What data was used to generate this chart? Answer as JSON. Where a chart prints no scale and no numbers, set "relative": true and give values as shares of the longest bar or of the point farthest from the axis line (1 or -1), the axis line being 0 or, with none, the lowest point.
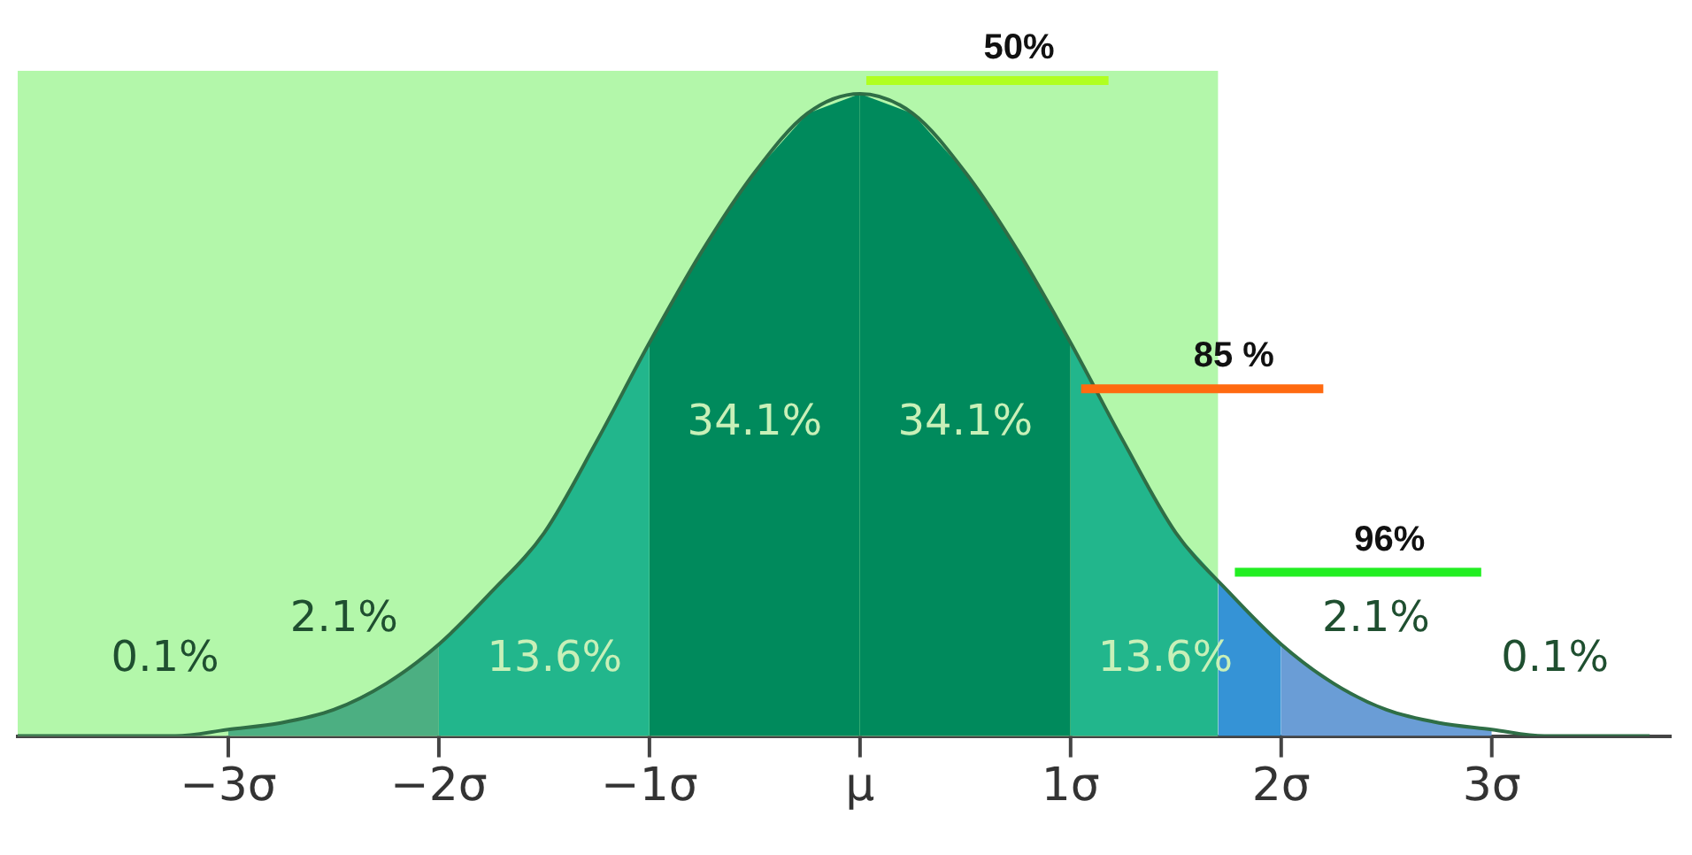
{
  "chart_data": {
    "type": "area",
    "relative": true,
    "grid": false,
    "legend": false,
    "tick_labels": "x",
    "xlim": [
      -4,
      3.85
    ],
    "xticks": [
      {
        "value": -3,
        "label": "−3σ"
      },
      {
        "value": -2,
        "label": "−2σ"
      },
      {
        "value": -1,
        "label": "−1σ"
      },
      {
        "value": 0,
        "label": "μ"
      },
      {
        "value": 1,
        "label": "1σ"
      },
      {
        "value": 2,
        "label": "2σ"
      },
      {
        "value": 3,
        "label": "3σ"
      }
    ],
    "bands": [
      {
        "axis": "x",
        "from": -4,
        "to": 1.7,
        "color": "#b3f7aa"
      }
    ],
    "series": [
      {
        "color": "#4caf82",
        "x": [
          -3,
          -2.75,
          -2.5,
          -2.25,
          -2
        ],
        "values": [
          0.01,
          0.02,
          0.04,
          0.08,
          0.14
        ]
      },
      {
        "color": "#22b68c",
        "x": [
          -2,
          -1.75,
          -1.5,
          -1.25,
          -1
        ],
        "values": [
          0.14,
          0.22,
          0.31,
          0.45,
          0.6
        ]
      },
      {
        "color": "#008a5c",
        "x": [
          -1,
          -0.75,
          -0.5,
          -0.25,
          0
        ],
        "values": [
          0.6,
          0.74,
          0.86,
          0.95,
          0.98
        ]
      },
      {
        "color": "#008a5c",
        "x": [
          0,
          0.25,
          0.5,
          0.75,
          1
        ],
        "values": [
          0.98,
          0.95,
          0.86,
          0.74,
          0.6
        ]
      },
      {
        "color": "#22b68c",
        "x": [
          1,
          1.25,
          1.5,
          1.7
        ],
        "values": [
          0.6,
          0.45,
          0.31,
          0.24
        ]
      },
      {
        "color": "#3593d6",
        "x": [
          1.7,
          1.75,
          2
        ],
        "values": [
          0.24,
          0.22,
          0.14
        ]
      },
      {
        "color": "#6a9dd6",
        "x": [
          2,
          2.25,
          2.5,
          2.75,
          3
        ],
        "values": [
          0.14,
          0.08,
          0.04,
          0.02,
          0.01
        ]
      },
      {
        "type": "line",
        "color": "#2f6e46",
        "x": [
          -4,
          -3.75,
          -3.5,
          -3.25,
          -3,
          -2.75,
          -2.5,
          -2.25,
          -2,
          -1.75,
          -1.5,
          -1.25,
          -1,
          -0.75,
          -0.5,
          -0.25,
          0,
          0.25,
          0.5,
          0.75,
          1,
          1.25,
          1.5,
          1.75,
          2,
          2.25,
          2.5,
          2.75,
          3,
          3.25,
          3.5,
          3.75
        ],
        "values": [
          0,
          0,
          0,
          0,
          0.01,
          0.02,
          0.04,
          0.08,
          0.14,
          0.22,
          0.31,
          0.45,
          0.6,
          0.74,
          0.86,
          0.95,
          0.98,
          0.95,
          0.86,
          0.74,
          0.6,
          0.45,
          0.31,
          0.22,
          0.14,
          0.08,
          0.04,
          0.02,
          0.01,
          0,
          0,
          0
        ]
      },
      {
        "type": "line",
        "name": "50%",
        "color": "#b0ff20",
        "x": [
          0.03,
          1.18
        ],
        "values": [
          1,
          1
        ]
      },
      {
        "type": "line",
        "name": "85 %",
        "color": "#ff6a10",
        "x": [
          1.05,
          2.2
        ],
        "values": [
          0.53,
          0.53
        ]
      },
      {
        "type": "line",
        "name": "96%",
        "color": "#22ee22",
        "x": [
          1.78,
          2.95
        ],
        "values": [
          0.25,
          0.25
        ]
      }
    ],
    "annotations": [
      "0.1%",
      "2.1%",
      "13.6%",
      "34.1%",
      "34.1%",
      "13.6%",
      "2.1%",
      "0.1%"
    ]
  }
}
